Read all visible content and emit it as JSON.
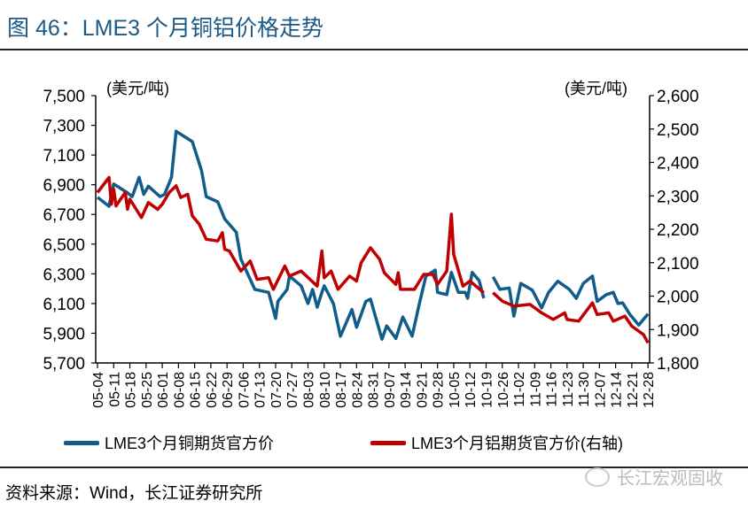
{
  "title": "图 46：LME3 个月铜铝价格走势",
  "source": "资料来源：Wind，长江证券研究所",
  "watermark": "长江宏观固收",
  "colors": {
    "copper": "#115c8a",
    "aluminium": "#c00000",
    "title": "#1b5a86"
  },
  "chart_data": {
    "type": "line",
    "title": "",
    "ylabel_left": "(美元/吨)",
    "ylabel_right": "(美元/吨)",
    "ylim_left": [
      5700,
      7500
    ],
    "ylim_right": [
      1800,
      2600
    ],
    "yticks_left": [
      "5,700",
      "5,900",
      "6,100",
      "6,300",
      "6,500",
      "6,700",
      "6,900",
      "7,100",
      "7,300",
      "7,500"
    ],
    "yticks_right": [
      "1,800",
      "1,900",
      "2,000",
      "2,100",
      "2,200",
      "2,300",
      "2,400",
      "2,500",
      "2,600"
    ],
    "xticks": [
      "05-04",
      "05-11",
      "05-18",
      "05-25",
      "06-01",
      "06-08",
      "06-15",
      "06-22",
      "06-29",
      "07-06",
      "07-13",
      "07-20",
      "07-27",
      "08-03",
      "08-10",
      "08-17",
      "08-24",
      "08-31",
      "09-07",
      "09-14",
      "09-21",
      "09-28",
      "10-05",
      "10-12",
      "10-19",
      "10-26",
      "11-02",
      "11-09",
      "11-16",
      "11-23",
      "11-30",
      "12-07",
      "12-14",
      "12-21",
      "12-28"
    ],
    "grid": false,
    "legend_placement": "bottom",
    "series": [
      {
        "name": "LME3个月铜期货官方价",
        "axis": "left",
        "points": [
          [
            "05-04",
            6815
          ],
          [
            "05-09",
            6755
          ],
          [
            "05-11",
            6905
          ],
          [
            "05-17",
            6845
          ],
          [
            "05-19",
            6820
          ],
          [
            "05-22",
            6950
          ],
          [
            "05-24",
            6835
          ],
          [
            "05-26",
            6890
          ],
          [
            "05-31",
            6820
          ],
          [
            "06-02",
            6835
          ],
          [
            "06-05",
            6950
          ],
          [
            "06-07",
            7260
          ],
          [
            "06-11",
            7220
          ],
          [
            "06-14",
            7190
          ],
          [
            "06-18",
            6995
          ],
          [
            "06-20",
            6820
          ],
          [
            "06-25",
            6785
          ],
          [
            "06-28",
            6670
          ],
          [
            "07-03",
            6580
          ],
          [
            "07-05",
            6400
          ],
          [
            "07-11",
            6195
          ],
          [
            "07-17",
            6175
          ],
          [
            "07-20",
            6000
          ],
          [
            "07-21",
            6115
          ],
          [
            "07-25",
            6195
          ],
          [
            "07-26",
            6285
          ],
          [
            "07-31",
            6220
          ],
          [
            "08-03",
            6100
          ],
          [
            "08-05",
            6195
          ],
          [
            "08-07",
            6075
          ],
          [
            "08-09",
            6175
          ],
          [
            "08-10",
            6220
          ],
          [
            "08-14",
            6100
          ],
          [
            "08-17",
            5880
          ],
          [
            "08-22",
            6060
          ],
          [
            "08-24",
            5940
          ],
          [
            "08-28",
            6115
          ],
          [
            "08-30",
            6130
          ],
          [
            "09-04",
            5860
          ],
          [
            "09-06",
            5950
          ],
          [
            "09-10",
            5865
          ],
          [
            "09-13",
            6010
          ],
          [
            "09-17",
            5880
          ],
          [
            "09-20",
            6090
          ],
          [
            "09-23",
            6285
          ],
          [
            "09-27",
            6325
          ],
          [
            "09-28",
            6175
          ],
          [
            "10-02",
            6160
          ],
          [
            "10-04",
            6310
          ],
          [
            "10-07",
            6175
          ],
          [
            "10-10",
            6175
          ],
          [
            "10-11",
            6135
          ],
          [
            "10-13",
            6310
          ],
          [
            "10-16",
            6255
          ],
          [
            "10-18",
            6135
          ],
          null,
          [
            "10-22",
            6280
          ],
          [
            "10-25",
            6195
          ],
          [
            "10-29",
            6205
          ],
          [
            "10-31",
            6015
          ],
          [
            "11-03",
            6235
          ],
          [
            "11-08",
            6190
          ],
          [
            "11-12",
            6070
          ],
          [
            "11-15",
            6175
          ],
          [
            "11-19",
            6250
          ],
          [
            "11-24",
            6195
          ],
          [
            "11-27",
            6135
          ],
          [
            "11-30",
            6235
          ],
          [
            "12-04",
            6285
          ],
          [
            "12-06",
            6115
          ],
          [
            "12-10",
            6160
          ],
          [
            "12-13",
            6175
          ],
          [
            "12-15",
            6100
          ],
          [
            "12-17",
            6105
          ],
          [
            "12-20",
            6030
          ],
          [
            "12-24",
            5955
          ],
          [
            "12-28",
            6030
          ]
        ]
      },
      {
        "name": "LME3个月铝期货官方价(右轴)",
        "axis": "right",
        "points": [
          [
            "05-04",
            2310
          ],
          [
            "05-09",
            2355
          ],
          [
            "05-10",
            2275
          ],
          [
            "05-11",
            2320
          ],
          [
            "05-12",
            2270
          ],
          [
            "05-16",
            2310
          ],
          [
            "05-17",
            2260
          ],
          [
            "05-18",
            2290
          ],
          [
            "05-23",
            2235
          ],
          [
            "05-26",
            2280
          ],
          [
            "05-30",
            2260
          ],
          [
            "06-01",
            2275
          ],
          [
            "06-04",
            2310
          ],
          [
            "06-07",
            2330
          ],
          [
            "06-09",
            2295
          ],
          [
            "06-12",
            2305
          ],
          [
            "06-14",
            2240
          ],
          [
            "06-17",
            2215
          ],
          [
            "06-20",
            2170
          ],
          [
            "06-25",
            2165
          ],
          [
            "06-27",
            2190
          ],
          [
            "06-28",
            2140
          ],
          [
            "06-30",
            2135
          ],
          [
            "07-05",
            2075
          ],
          [
            "07-09",
            2105
          ],
          [
            "07-12",
            2050
          ],
          [
            "07-17",
            2055
          ],
          [
            "07-19",
            2020
          ],
          [
            "07-24",
            2090
          ],
          [
            "07-26",
            2060
          ],
          [
            "07-31",
            2075
          ],
          [
            "08-07",
            2030
          ],
          [
            "08-09",
            2135
          ],
          [
            "08-10",
            2055
          ],
          [
            "08-13",
            2075
          ],
          [
            "08-16",
            2020
          ],
          [
            "08-21",
            2060
          ],
          [
            "08-24",
            2045
          ],
          [
            "08-26",
            2100
          ],
          [
            "08-30",
            2145
          ],
          [
            "09-03",
            2110
          ],
          [
            "09-05",
            2070
          ],
          [
            "09-10",
            2035
          ],
          [
            "09-11",
            2070
          ],
          [
            "09-12",
            2020
          ],
          [
            "09-18",
            2020
          ],
          [
            "09-22",
            2065
          ],
          [
            "09-26",
            2065
          ],
          [
            "09-28",
            2035
          ],
          [
            "10-02",
            2075
          ],
          [
            "10-04",
            2245
          ],
          [
            "10-05",
            2125
          ],
          [
            "10-09",
            2030
          ],
          [
            "10-12",
            2045
          ],
          [
            "10-18",
            2010
          ],
          null,
          [
            "10-22",
            2010
          ],
          [
            "10-26",
            1985
          ],
          [
            "10-31",
            1970
          ],
          [
            "11-07",
            1975
          ],
          [
            "11-12",
            1950
          ],
          [
            "11-17",
            1930
          ],
          [
            "11-22",
            1950
          ],
          [
            "11-23",
            1930
          ],
          [
            "11-28",
            1925
          ],
          [
            "12-04",
            1980
          ],
          [
            "12-06",
            1945
          ],
          [
            "12-11",
            1950
          ],
          [
            "12-13",
            1925
          ],
          [
            "12-18",
            1940
          ],
          [
            "12-21",
            1910
          ],
          [
            "12-26",
            1885
          ],
          [
            "12-28",
            1860
          ]
        ]
      }
    ]
  }
}
